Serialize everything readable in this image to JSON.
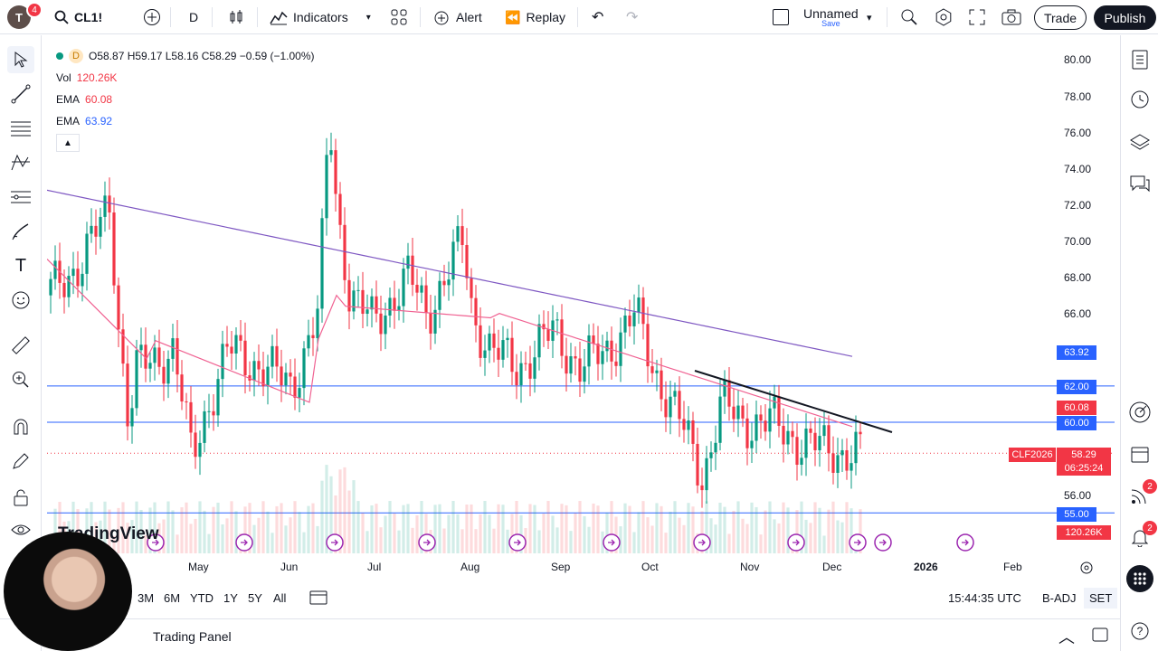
{
  "header": {
    "avatar_letter": "T",
    "notifications": "4",
    "symbol": "CL1!",
    "interval": "D",
    "indicators_label": "Indicators",
    "alert_label": "Alert",
    "replay_label": "Replay",
    "layout_name": "Unnamed",
    "layout_save": "Save",
    "trade_label": "Trade",
    "publish_label": "Publish"
  },
  "legend": {
    "ohlc": "O58.87 H59.17 L58.16 C58.29 −0.59 (−1.00%)",
    "interval_badge": "D",
    "vol_label": "Vol",
    "vol_value": "120.26K",
    "ema1_label": "EMA",
    "ema1_value": "60.08",
    "ema2_label": "EMA",
    "ema2_value": "63.92"
  },
  "price_axis": {
    "ticks": [
      "80.00",
      "78.00",
      "76.00",
      "74.00",
      "72.00",
      "70.00",
      "68.00",
      "66.00",
      "56.00"
    ],
    "labels": {
      "ema200": "63.92",
      "level_62": "62.00",
      "ema50": "60.08",
      "level_60": "60.00",
      "symbol_tag": "CLF2026",
      "last_price": "58.29",
      "countdown": "06:25:24",
      "level_55": "55.00",
      "volume": "120.26K"
    }
  },
  "time_axis": [
    "May",
    "Jun",
    "Jul",
    "Aug",
    "Sep",
    "Oct",
    "Nov",
    "Dec",
    "2026",
    "Feb"
  ],
  "ranges": [
    "3M",
    "6M",
    "YTD",
    "1Y",
    "5Y",
    "All"
  ],
  "status": {
    "clock": "15:44:35 UTC",
    "adjustment": "B-ADJ",
    "session": "SET"
  },
  "panel": {
    "label": "Trading Panel",
    "watermark": "TradingView"
  },
  "right_badges": {
    "ideas": "2",
    "alerts": "2"
  },
  "colors": {
    "up": "#089981",
    "down": "#f23645",
    "ema_fast": "#f06292",
    "ema_slow": "#7e57c2",
    "hline": "#2962ff",
    "accent": "#131722"
  }
}
